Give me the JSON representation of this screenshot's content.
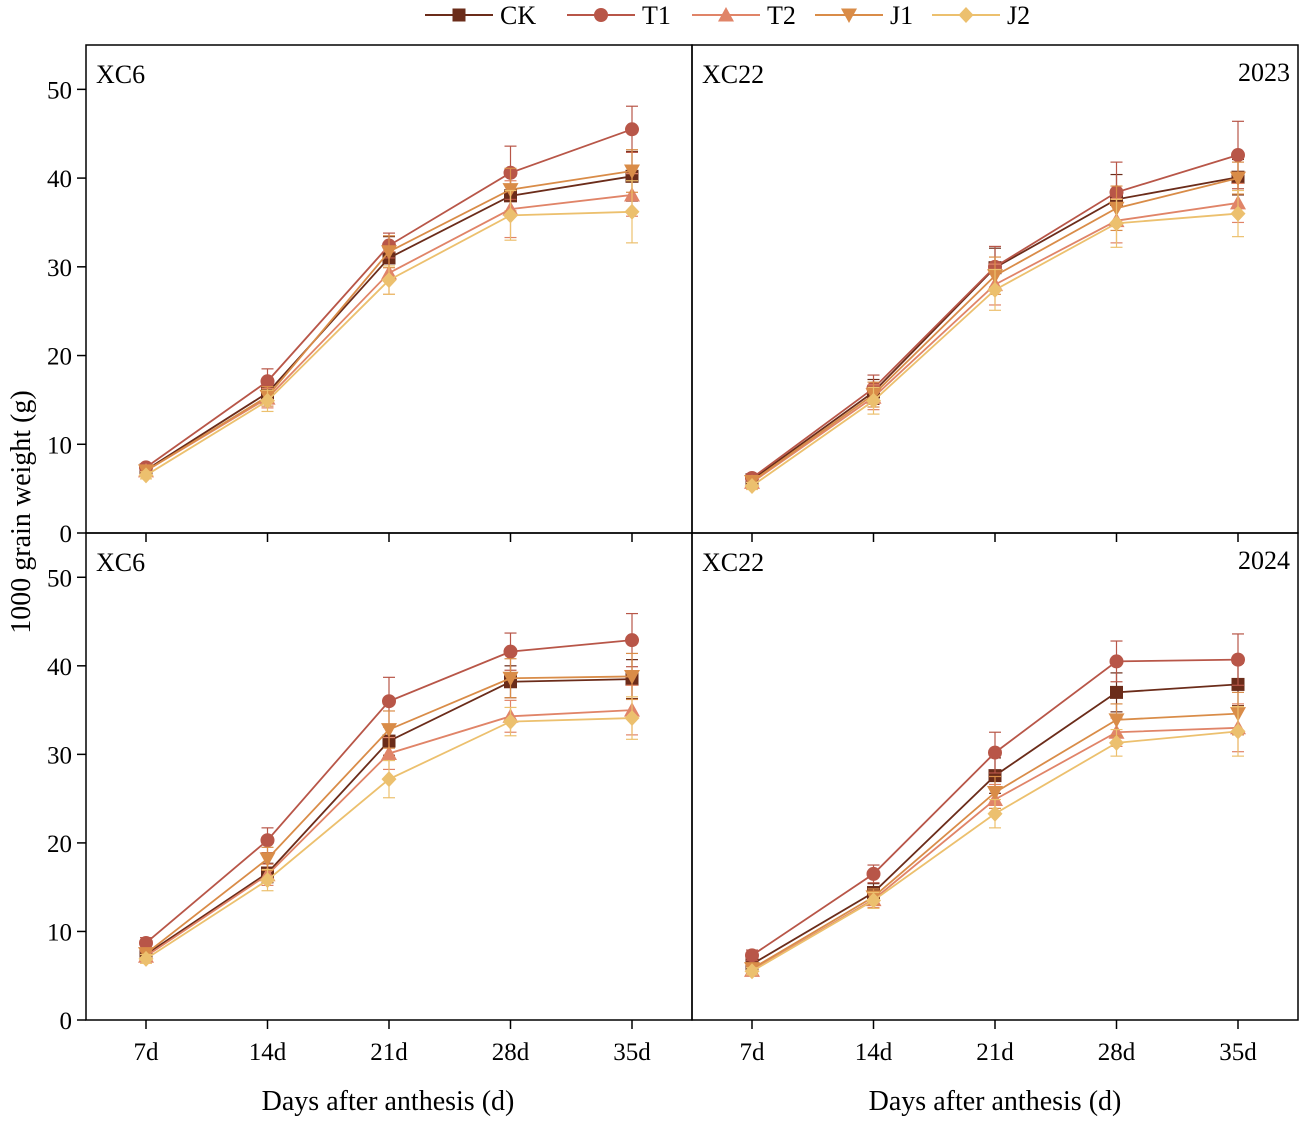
{
  "figure": {
    "ylabel": "1000 grain weight (g)",
    "xlabel": "Days after anthesis (d)",
    "legend_position": "top-center"
  },
  "series_style": {
    "CK": {
      "color": "#6b2c1a",
      "marker": "square"
    },
    "T1": {
      "color": "#b85648",
      "marker": "circle"
    },
    "T2": {
      "color": "#e08468",
      "marker": "triangle-up"
    },
    "J1": {
      "color": "#d98c48",
      "marker": "triangle-down"
    },
    "J2": {
      "color": "#ecc06e",
      "marker": "diamond"
    }
  },
  "chart_data": [
    {
      "type": "line",
      "panel": "XC6",
      "year": "",
      "categories": [
        "7d",
        "14d",
        "21d",
        "28d",
        "35d"
      ],
      "ylim": [
        0,
        55
      ],
      "yticks": [
        0,
        10,
        20,
        30,
        40,
        50
      ],
      "series": [
        {
          "name": "CK",
          "values": [
            7.1,
            15.8,
            31.0,
            38.0,
            40.2
          ],
          "errors": [
            0.5,
            1.2,
            2.4,
            2.2,
            2.8
          ]
        },
        {
          "name": "T1",
          "values": [
            7.4,
            17.1,
            32.4,
            40.6,
            45.5
          ],
          "errors": [
            0.4,
            1.4,
            1.4,
            3.0,
            2.6
          ]
        },
        {
          "name": "T2",
          "values": [
            7.0,
            15.2,
            29.3,
            36.5,
            38.1
          ],
          "errors": [
            0.4,
            1.1,
            2.4,
            3.2,
            2.4
          ]
        },
        {
          "name": "J1",
          "values": [
            7.0,
            15.4,
            31.7,
            38.7,
            40.8
          ],
          "errors": [
            0.4,
            1.1,
            1.8,
            2.4,
            2.4
          ]
        },
        {
          "name": "J2",
          "values": [
            6.5,
            14.9,
            28.5,
            35.8,
            36.2
          ],
          "errors": [
            0.4,
            1.2,
            1.6,
            2.8,
            3.5
          ]
        }
      ]
    },
    {
      "type": "line",
      "panel": "XC22",
      "year": "2023",
      "categories": [
        "7d",
        "14d",
        "21d",
        "28d",
        "35d"
      ],
      "ylim": [
        0,
        55
      ],
      "yticks": [
        0,
        10,
        20,
        30,
        40,
        50
      ],
      "series": [
        {
          "name": "CK",
          "values": [
            6.0,
            15.9,
            29.9,
            37.6,
            40.1
          ],
          "errors": [
            0.4,
            1.4,
            2.2,
            2.8,
            2.0
          ]
        },
        {
          "name": "T1",
          "values": [
            6.2,
            16.3,
            30.0,
            38.4,
            42.6
          ],
          "errors": [
            0.4,
            1.5,
            2.3,
            3.4,
            3.8
          ]
        },
        {
          "name": "T2",
          "values": [
            5.7,
            15.3,
            28.0,
            35.2,
            37.2
          ],
          "errors": [
            0.4,
            1.4,
            2.3,
            2.5,
            2.2
          ]
        },
        {
          "name": "J1",
          "values": [
            5.8,
            15.6,
            29.0,
            36.6,
            40.0
          ],
          "errors": [
            0.4,
            1.4,
            2.1,
            2.5,
            1.8
          ]
        },
        {
          "name": "J2",
          "values": [
            5.3,
            14.9,
            27.4,
            34.9,
            36.0
          ],
          "errors": [
            0.4,
            1.5,
            2.3,
            2.7,
            2.6
          ]
        }
      ]
    },
    {
      "type": "line",
      "panel": "XC6",
      "year": "",
      "categories": [
        "7d",
        "14d",
        "21d",
        "28d",
        "35d"
      ],
      "ylim": [
        0,
        55
      ],
      "yticks": [
        0,
        10,
        20,
        30,
        40,
        50
      ],
      "series": [
        {
          "name": "CK",
          "values": [
            7.4,
            16.6,
            31.5,
            38.2,
            38.5
          ],
          "errors": [
            0.6,
            1.1,
            1.6,
            1.8,
            2.2
          ]
        },
        {
          "name": "T1",
          "values": [
            8.7,
            20.3,
            36.0,
            41.6,
            42.9
          ],
          "errors": [
            0.6,
            1.4,
            2.7,
            2.1,
            3.0
          ]
        },
        {
          "name": "T2",
          "values": [
            7.2,
            16.4,
            30.1,
            34.3,
            35.0
          ],
          "errors": [
            0.5,
            1.2,
            1.8,
            1.8,
            2.8
          ]
        },
        {
          "name": "J1",
          "values": [
            7.5,
            18.2,
            32.8,
            38.6,
            38.8
          ],
          "errors": [
            0.5,
            1.3,
            2.1,
            2.2,
            2.6
          ]
        },
        {
          "name": "J2",
          "values": [
            6.9,
            15.8,
            27.2,
            33.7,
            34.1
          ],
          "errors": [
            0.5,
            1.2,
            2.1,
            1.6,
            2.4
          ]
        }
      ]
    },
    {
      "type": "line",
      "panel": "XC22",
      "year": "2024",
      "categories": [
        "7d",
        "14d",
        "21d",
        "28d",
        "35d"
      ],
      "ylim": [
        0,
        55
      ],
      "yticks": [
        0,
        10,
        20,
        30,
        40,
        50
      ],
      "series": [
        {
          "name": "CK",
          "values": [
            6.3,
            14.4,
            27.6,
            37.0,
            37.9
          ],
          "errors": [
            0.5,
            1.0,
            2.0,
            2.2,
            2.4
          ]
        },
        {
          "name": "T1",
          "values": [
            7.3,
            16.5,
            30.2,
            40.5,
            40.7
          ],
          "errors": [
            0.6,
            1.0,
            2.3,
            2.3,
            2.9
          ]
        },
        {
          "name": "T2",
          "values": [
            5.6,
            13.6,
            24.9,
            32.5,
            33.0
          ],
          "errors": [
            0.4,
            0.9,
            1.7,
            1.6,
            2.7
          ]
        },
        {
          "name": "J1",
          "values": [
            5.8,
            13.9,
            25.7,
            33.9,
            34.6
          ],
          "errors": [
            0.4,
            0.9,
            1.8,
            1.8,
            2.4
          ]
        },
        {
          "name": "J2",
          "values": [
            5.5,
            13.5,
            23.3,
            31.3,
            32.6
          ],
          "errors": [
            0.4,
            0.9,
            1.6,
            1.5,
            2.8
          ]
        }
      ]
    }
  ]
}
